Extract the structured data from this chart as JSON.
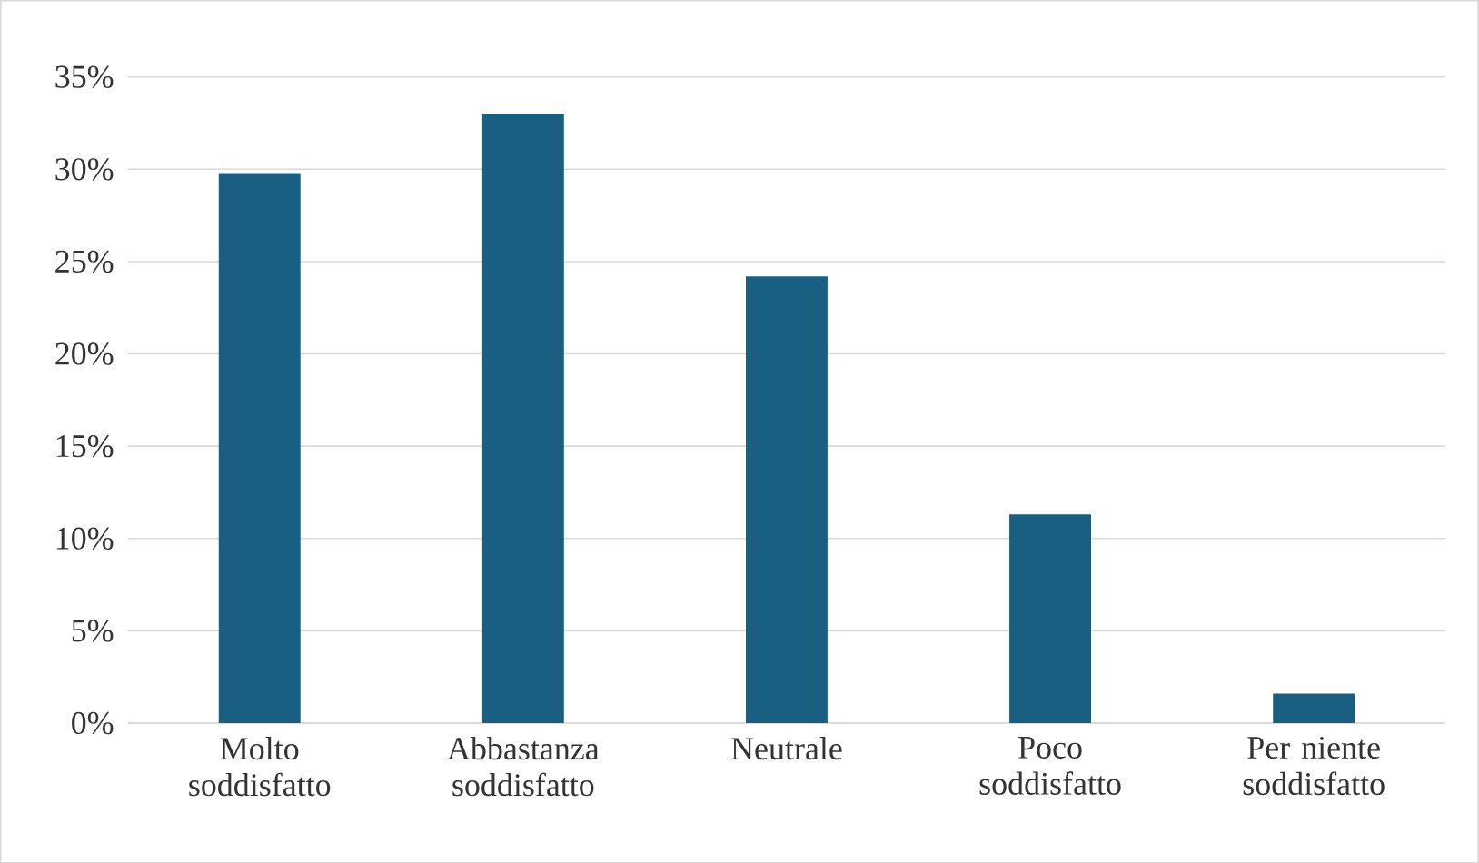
{
  "chart_data": {
    "type": "bar",
    "categories": [
      "Molto soddisfatto",
      "Abbastanza soddisfatto",
      "Neutrale",
      "Poco soddisfatto",
      "Per niente soddisfatto"
    ],
    "values": [
      29.8,
      33.0,
      24.2,
      11.3,
      1.6
    ],
    "color": "#185f82",
    "ylim": [
      0,
      35
    ],
    "yticks": [
      {
        "value": 0,
        "label": "0%"
      },
      {
        "value": 5,
        "label": "5%"
      },
      {
        "value": 10,
        "label": "10%"
      },
      {
        "value": 15,
        "label": "15%"
      },
      {
        "value": 20,
        "label": "20%"
      },
      {
        "value": 25,
        "label": "25%"
      },
      {
        "value": 30,
        "label": "30%"
      },
      {
        "value": 35,
        "label": "35%"
      }
    ],
    "grid": "y"
  }
}
